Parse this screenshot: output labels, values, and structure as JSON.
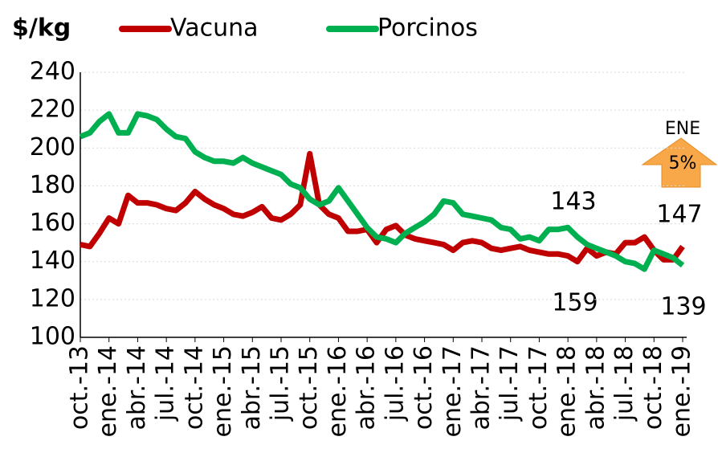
{
  "chart_data": {
    "type": "line",
    "title": "$/kg",
    "categories": [
      "oct.-13",
      null,
      null,
      "ene.-14",
      null,
      null,
      "abr.-14",
      null,
      null,
      "jul.-14",
      null,
      null,
      "oct.-14",
      null,
      null,
      "ene.-15",
      null,
      null,
      "abr.-15",
      null,
      null,
      "jul.-15",
      null,
      null,
      "oct.-15",
      null,
      null,
      "ene.-16",
      null,
      null,
      "abr.-16",
      null,
      null,
      "jul.-16",
      null,
      null,
      "oct.-16",
      null,
      null,
      "ene.-17",
      null,
      null,
      "abr.-17",
      null,
      null,
      "jul.-17",
      null,
      null,
      "oct.-17",
      null,
      null,
      "ene.-18",
      null,
      null,
      "abr.-18",
      null,
      null,
      "jul.-18",
      null,
      null,
      "oct.-18",
      null,
      null,
      "ene.-19"
    ],
    "series": [
      {
        "name": "Vacuna",
        "color": "#c00000",
        "values": [
          149,
          148,
          155,
          163,
          160,
          175,
          171,
          171,
          170,
          168,
          167,
          171,
          177,
          173,
          170,
          168,
          165,
          164,
          166,
          169,
          163,
          162,
          165,
          170,
          197,
          170,
          165,
          163,
          156,
          156,
          157,
          150,
          157,
          159,
          154,
          152,
          151,
          150,
          149,
          146,
          150,
          151,
          150,
          147,
          146,
          147,
          148,
          146,
          145,
          144,
          144,
          143,
          140,
          147,
          143,
          145,
          144,
          150,
          150,
          153,
          146,
          141,
          141,
          148
        ]
      },
      {
        "name": "Porcinos",
        "color": "#00b050",
        "values": [
          206,
          208,
          214,
          218,
          208,
          208,
          218,
          217,
          215,
          210,
          206,
          205,
          198,
          195,
          193,
          193,
          192,
          195,
          192,
          190,
          188,
          186,
          181,
          179,
          173,
          170,
          172,
          179,
          172,
          165,
          158,
          153,
          152,
          150,
          155,
          158,
          161,
          165,
          172,
          171,
          165,
          164,
          163,
          162,
          158,
          157,
          152,
          153,
          151,
          157,
          157,
          158,
          153,
          149,
          147,
          145,
          143,
          140,
          139,
          136,
          146,
          144,
          142,
          138
        ]
      }
    ],
    "ylim": [
      100,
      240
    ],
    "yticks": [
      100,
      120,
      140,
      160,
      180,
      200,
      220,
      240
    ],
    "grid": true,
    "annotations": [
      "143",
      "159",
      "147",
      "139",
      "ENE",
      "5%"
    ]
  }
}
